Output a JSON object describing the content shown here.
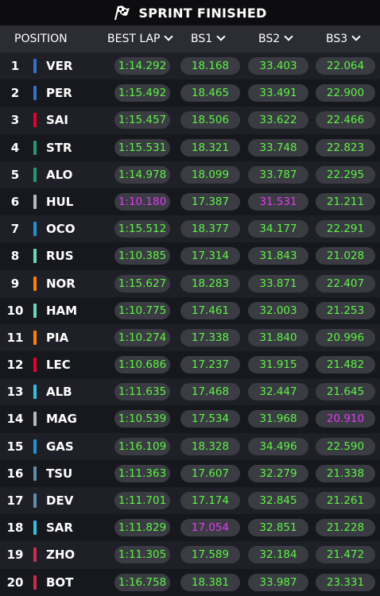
{
  "header": {
    "title": "SPRINT FINISHED"
  },
  "columns": {
    "position": "POSITION",
    "best_lap": "BEST LAP",
    "bs1": "BS1",
    "bs2": "BS2",
    "bs3": "BS3"
  },
  "colors": {
    "timing": "#5cf542",
    "fastest": "#e23cf0"
  },
  "rows": [
    {
      "position": "1",
      "team_color": "#3671c6",
      "driver": "VER",
      "best_lap": "1:14.292",
      "bs1": "18.168",
      "bs2": "33.403",
      "bs3": "22.064",
      "fastest": []
    },
    {
      "position": "2",
      "team_color": "#3671c6",
      "driver": "PER",
      "best_lap": "1:15.492",
      "bs1": "18.465",
      "bs2": "33.491",
      "bs3": "22.900",
      "fastest": []
    },
    {
      "position": "3",
      "team_color": "#e8002d",
      "driver": "SAI",
      "best_lap": "1:15.457",
      "bs1": "18.506",
      "bs2": "33.622",
      "bs3": "22.466",
      "fastest": []
    },
    {
      "position": "4",
      "team_color": "#229971",
      "driver": "STR",
      "best_lap": "1:15.531",
      "bs1": "18.321",
      "bs2": "33.748",
      "bs3": "22.823",
      "fastest": []
    },
    {
      "position": "5",
      "team_color": "#229971",
      "driver": "ALO",
      "best_lap": "1:14.978",
      "bs1": "18.099",
      "bs2": "33.787",
      "bs3": "22.295",
      "fastest": []
    },
    {
      "position": "6",
      "team_color": "#b6babd",
      "driver": "HUL",
      "best_lap": "1:10.180",
      "bs1": "17.387",
      "bs2": "31.531",
      "bs3": "21.211",
      "fastest": [
        "best_lap",
        "bs2"
      ]
    },
    {
      "position": "7",
      "team_color": "#2293d1",
      "driver": "OCO",
      "best_lap": "1:15.512",
      "bs1": "18.377",
      "bs2": "34.177",
      "bs3": "22.291",
      "fastest": []
    },
    {
      "position": "8",
      "team_color": "#6cd3bf",
      "driver": "RUS",
      "best_lap": "1:10.385",
      "bs1": "17.314",
      "bs2": "31.843",
      "bs3": "21.028",
      "fastest": []
    },
    {
      "position": "9",
      "team_color": "#ff8000",
      "driver": "NOR",
      "best_lap": "1:15.627",
      "bs1": "18.283",
      "bs2": "33.871",
      "bs3": "22.407",
      "fastest": []
    },
    {
      "position": "10",
      "team_color": "#6cd3bf",
      "driver": "HAM",
      "best_lap": "1:10.775",
      "bs1": "17.461",
      "bs2": "32.003",
      "bs3": "21.253",
      "fastest": []
    },
    {
      "position": "11",
      "team_color": "#ff8000",
      "driver": "PIA",
      "best_lap": "1:10.274",
      "bs1": "17.338",
      "bs2": "31.840",
      "bs3": "20.996",
      "fastest": []
    },
    {
      "position": "12",
      "team_color": "#e8002d",
      "driver": "LEC",
      "best_lap": "1:10.686",
      "bs1": "17.237",
      "bs2": "31.915",
      "bs3": "21.482",
      "fastest": []
    },
    {
      "position": "13",
      "team_color": "#37bedd",
      "driver": "ALB",
      "best_lap": "1:11.635",
      "bs1": "17.468",
      "bs2": "32.447",
      "bs3": "21.645",
      "fastest": []
    },
    {
      "position": "14",
      "team_color": "#b6babd",
      "driver": "MAG",
      "best_lap": "1:10.539",
      "bs1": "17.534",
      "bs2": "31.968",
      "bs3": "20.910",
      "fastest": [
        "bs3"
      ]
    },
    {
      "position": "15",
      "team_color": "#2293d1",
      "driver": "GAS",
      "best_lap": "1:16.109",
      "bs1": "18.328",
      "bs2": "34.496",
      "bs3": "22.590",
      "fastest": []
    },
    {
      "position": "16",
      "team_color": "#5e8faa",
      "driver": "TSU",
      "best_lap": "1:11.363",
      "bs1": "17.607",
      "bs2": "32.279",
      "bs3": "21.338",
      "fastest": []
    },
    {
      "position": "17",
      "team_color": "#5e8faa",
      "driver": "DEV",
      "best_lap": "1:11.701",
      "bs1": "17.174",
      "bs2": "32.845",
      "bs3": "21.261",
      "fastest": []
    },
    {
      "position": "18",
      "team_color": "#37bedd",
      "driver": "SAR",
      "best_lap": "1:11.829",
      "bs1": "17.054",
      "bs2": "32.851",
      "bs3": "21.228",
      "fastest": [
        "bs1"
      ]
    },
    {
      "position": "19",
      "team_color": "#c92d4b",
      "driver": "ZHO",
      "best_lap": "1:11.305",
      "bs1": "17.589",
      "bs2": "32.184",
      "bs3": "21.472",
      "fastest": []
    },
    {
      "position": "20",
      "team_color": "#c92d4b",
      "driver": "BOT",
      "best_lap": "1:16.758",
      "bs1": "18.381",
      "bs2": "33.987",
      "bs3": "23.331",
      "fastest": []
    }
  ]
}
